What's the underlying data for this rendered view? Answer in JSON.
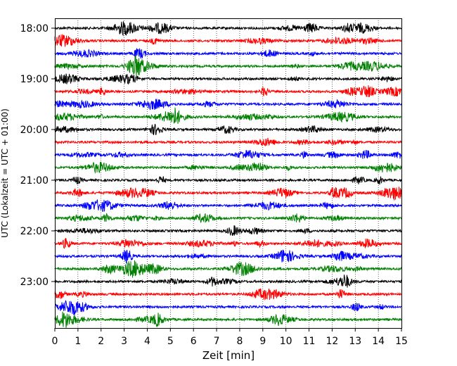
{
  "chart_data": {
    "type": "line",
    "title": "",
    "xlabel": "Zeit  [min]",
    "ylabel": "UTC (Lokalzeit = UTC + 01:00)",
    "xlim": [
      0,
      15
    ],
    "x_ticks": [
      0,
      1,
      2,
      3,
      4,
      5,
      6,
      7,
      8,
      9,
      10,
      11,
      12,
      13,
      14,
      15
    ],
    "y_ticks": [
      "18:00",
      "19:00",
      "20:00",
      "21:00",
      "22:00",
      "23:00"
    ],
    "vertical_grid": "dotted at each minute",
    "trace_start_time": "18:00",
    "trace_interval_minutes": 15,
    "trace_count": 24,
    "trace_colors": [
      "#000000",
      "#ff0000",
      "#0000ff",
      "#008000"
    ],
    "description": "Helicorder-style seismogram: one 15-minute trace per row, colors cycle black, red, blue, green"
  }
}
